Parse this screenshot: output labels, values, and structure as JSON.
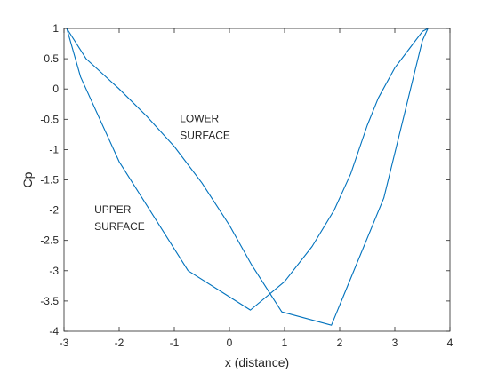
{
  "chart_data": {
    "type": "line",
    "title": "",
    "xlabel": "x (distance)",
    "ylabel": "Cp",
    "xlim": [
      -3,
      4
    ],
    "ylim": [
      -4,
      1
    ],
    "x_ticks": [
      -3,
      -2,
      -1,
      0,
      1,
      2,
      3,
      4
    ],
    "y_ticks": [
      1,
      0.5,
      0,
      -0.5,
      -1,
      -1.5,
      -2,
      -2.5,
      -3,
      -3.5,
      -4
    ],
    "grid": false,
    "legend": "none",
    "line_color": "#0072BD",
    "series": [
      {
        "points": [
          [
            -2.95,
            1.0
          ],
          [
            -2.6,
            0.5
          ],
          [
            -2.3,
            0.25
          ],
          [
            -2.0,
            0.0
          ],
          [
            -1.5,
            -0.45
          ],
          [
            -1.0,
            -0.95
          ],
          [
            -0.5,
            -1.55
          ],
          [
            0.0,
            -2.25
          ],
          [
            0.4,
            -2.9
          ],
          [
            0.95,
            -3.68
          ],
          [
            1.85,
            -3.9
          ],
          [
            2.8,
            -1.8
          ],
          [
            3.5,
            0.8
          ],
          [
            3.6,
            1.0
          ]
        ]
      },
      {
        "points": [
          [
            -2.95,
            1.0
          ],
          [
            -2.7,
            0.2
          ],
          [
            -2.0,
            -1.2
          ],
          [
            -0.75,
            -3.0
          ],
          [
            0.38,
            -3.65
          ],
          [
            1.0,
            -3.18
          ],
          [
            1.5,
            -2.6
          ],
          [
            1.9,
            -2.0
          ],
          [
            2.2,
            -1.4
          ],
          [
            2.5,
            -0.6
          ],
          [
            2.7,
            -0.15
          ],
          [
            3.0,
            0.35
          ],
          [
            3.25,
            0.65
          ],
          [
            3.5,
            0.95
          ],
          [
            3.6,
            1.0
          ]
        ]
      }
    ],
    "annotations": [
      {
        "lines": [
          "LOWER",
          "SURFACE"
        ],
        "x": -0.9,
        "y": -0.55
      },
      {
        "lines": [
          "UPPER",
          "SURFACE"
        ],
        "x": -2.45,
        "y": -2.05
      }
    ]
  }
}
